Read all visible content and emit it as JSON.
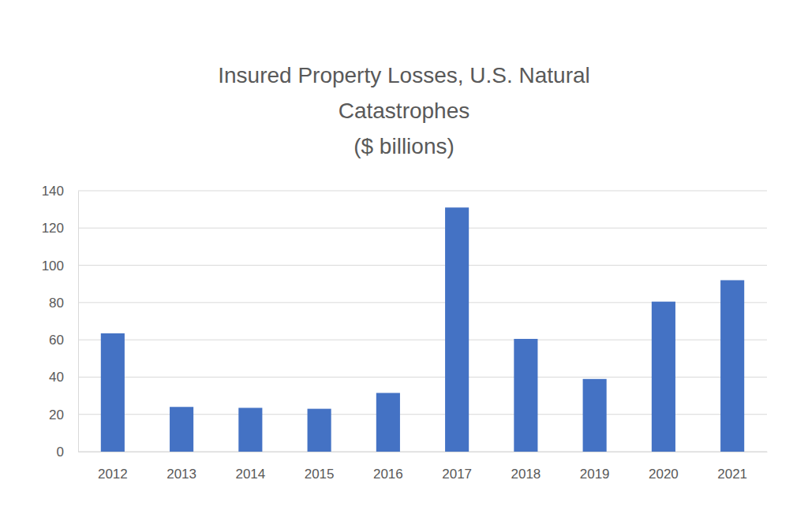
{
  "chart_data": {
    "type": "bar",
    "title": "Insured Property Losses, U.S. Natural Catastrophes",
    "subtitle": "($ billions)",
    "categories": [
      "2012",
      "2013",
      "2014",
      "2015",
      "2016",
      "2017",
      "2018",
      "2019",
      "2020",
      "2021"
    ],
    "values": [
      63.5,
      24,
      23.5,
      23,
      31.5,
      131,
      60.5,
      39,
      80.5,
      92
    ],
    "color": "#4472c4",
    "ylim": [
      0,
      140
    ],
    "yticks": [
      0,
      20,
      40,
      60,
      80,
      100,
      120,
      140
    ],
    "grid": true
  }
}
